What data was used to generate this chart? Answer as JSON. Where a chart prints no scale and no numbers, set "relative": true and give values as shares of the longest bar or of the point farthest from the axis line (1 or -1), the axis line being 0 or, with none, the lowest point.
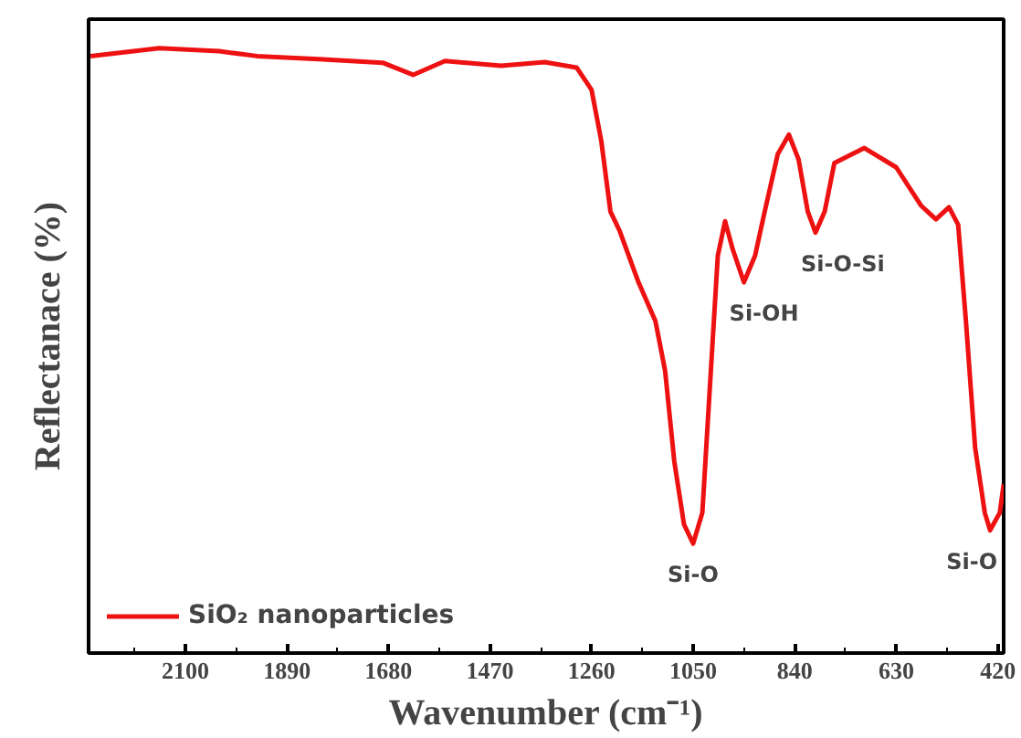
{
  "chart_data": {
    "type": "line",
    "relative": true,
    "xlabel": "Wavenumber (cm⁻¹)",
    "ylabel": "Reflectanace (%)",
    "xlim": [
      2300,
      408
    ],
    "xticks": [
      2100,
      1890,
      1680,
      1470,
      1260,
      1050,
      840,
      630,
      420
    ],
    "x": [
      2296,
      2154,
      2030,
      1952,
      1824,
      1692,
      1629,
      1563,
      1447,
      1357,
      1291,
      1260,
      1240,
      1221,
      1202,
      1163,
      1128,
      1108,
      1089,
      1069,
      1050,
      1031,
      1011,
      999,
      984,
      968,
      945,
      922,
      902,
      875,
      852,
      832,
      813,
      797,
      778,
      758,
      696,
      630,
      579,
      548,
      521,
      502,
      486,
      467,
      447,
      436,
      416,
      408
    ],
    "series": [
      {
        "name": "SiO₂ nanoparticles",
        "color": "#ee1111",
        "values": [
          0.987,
          1.0,
          0.995,
          0.987,
          0.982,
          0.976,
          0.956,
          0.979,
          0.971,
          0.977,
          0.968,
          0.931,
          0.847,
          0.73,
          0.698,
          0.613,
          0.549,
          0.467,
          0.317,
          0.213,
          0.181,
          0.232,
          0.498,
          0.657,
          0.714,
          0.667,
          0.613,
          0.657,
          0.73,
          0.825,
          0.857,
          0.816,
          0.73,
          0.695,
          0.73,
          0.81,
          0.835,
          0.803,
          0.74,
          0.717,
          0.737,
          0.708,
          0.549,
          0.34,
          0.232,
          0.203,
          0.232,
          0.279
        ]
      }
    ],
    "annotations": [
      {
        "text": "Si-O",
        "x": 1050,
        "y": 0.181
      },
      {
        "text": "Si-OH",
        "x": 945,
        "y": 0.613
      },
      {
        "text": "Si-O-Si",
        "x": 797,
        "y": 0.695
      },
      {
        "text": "Si-O",
        "x": 436,
        "y": 0.203
      }
    ],
    "legend": "bottom left",
    "grid": false,
    "line_style": "solid",
    "marker": "none"
  }
}
